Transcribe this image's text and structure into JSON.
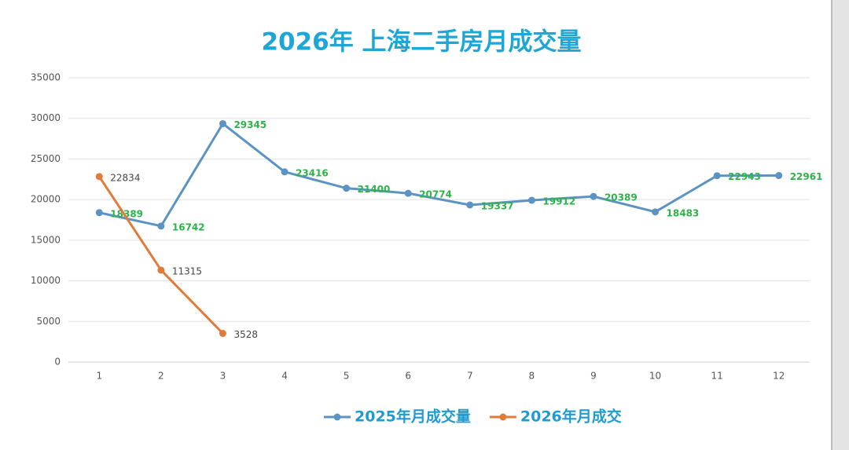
{
  "chart_data": {
    "type": "line",
    "title": "2026年 上海二手房月成交量",
    "categories": [
      "1",
      "2",
      "3",
      "4",
      "5",
      "6",
      "7",
      "8",
      "9",
      "10",
      "11",
      "12"
    ],
    "series": [
      {
        "name": "2025年月成交量",
        "color": "#5b93c3",
        "label_color": "#2db34a",
        "values": [
          18389,
          16742,
          29345,
          23416,
          21400,
          20774,
          19337,
          19912,
          20389,
          18483,
          22943,
          22961
        ]
      },
      {
        "name": "2026年月成交",
        "color": "#e07b39",
        "label_color": "#444444",
        "values": [
          22834,
          11315,
          3528,
          null,
          null,
          null,
          null,
          null,
          null,
          null,
          null,
          null
        ]
      }
    ],
    "ylim": [
      0,
      35000
    ],
    "yticks": [
      0,
      5000,
      10000,
      15000,
      20000,
      25000,
      30000,
      35000
    ],
    "grid": true,
    "legend": "bottom"
  }
}
